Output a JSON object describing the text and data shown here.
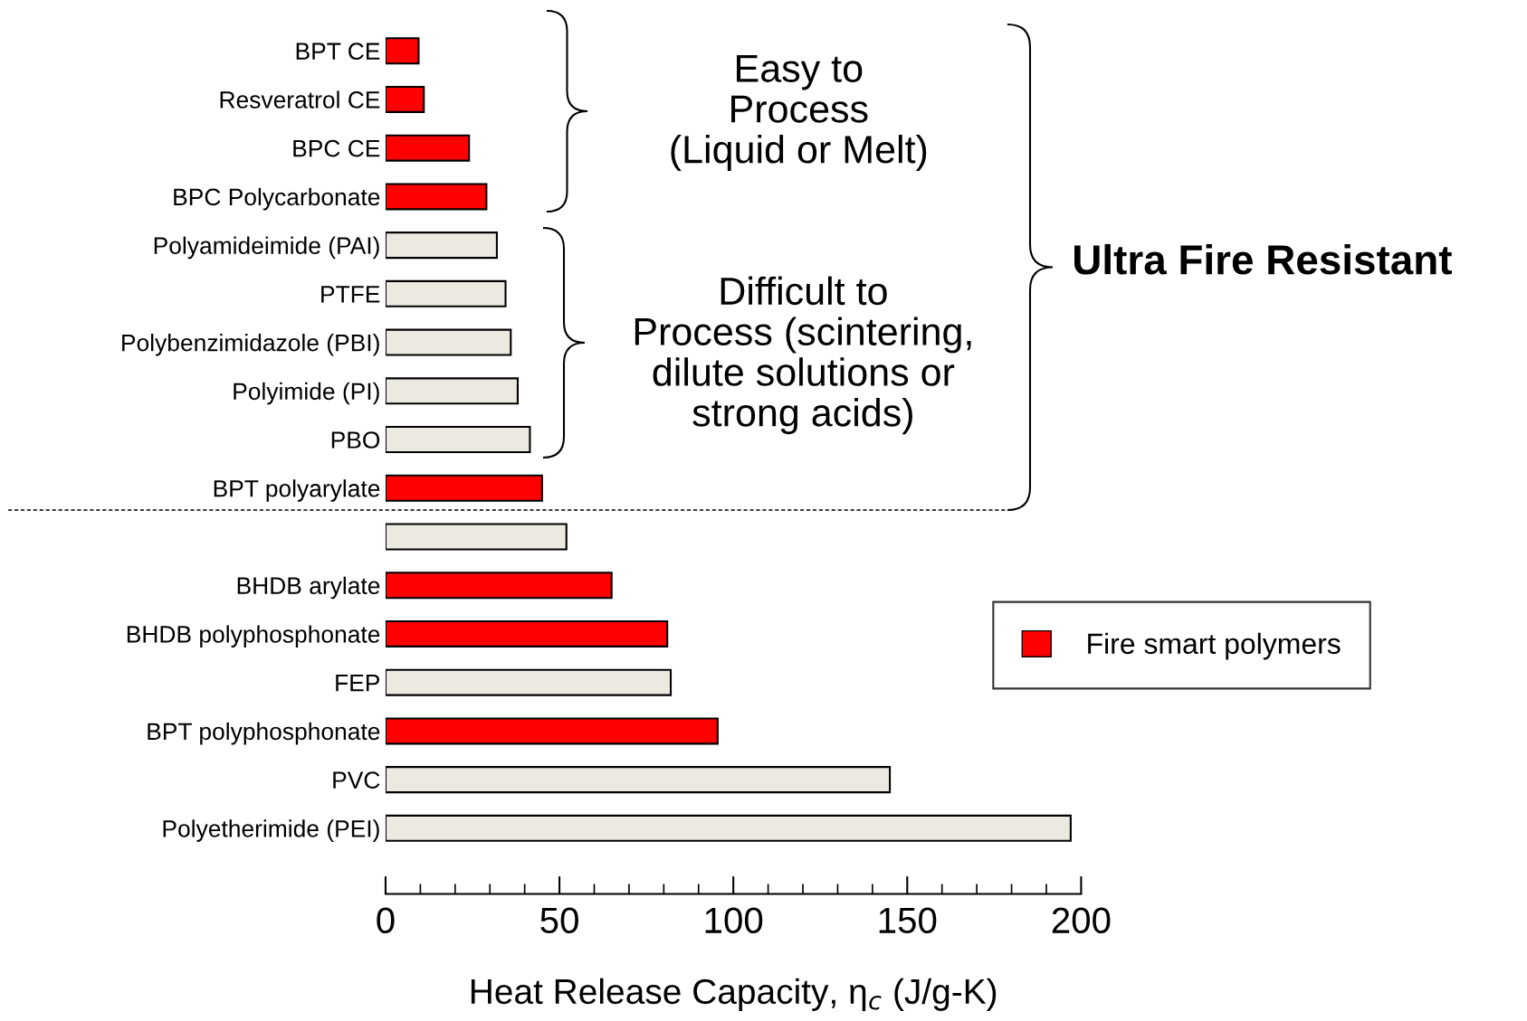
{
  "chart_data": {
    "type": "bar",
    "orientation": "horizontal",
    "categories": [
      "BPT CE",
      "Resveratrol CE",
      "BPC CE",
      "BPC Polycarbonate",
      "Polyamideimide (PAI)",
      "PTFE",
      "Polybenzimidazole (PBI)",
      "Polyimide (PI)",
      "PBO",
      "BPT polyarylate",
      null,
      "BHDB arylate",
      "BHDB polyphosphonate",
      "FEP",
      "BPT polyphosphonate",
      "PVC",
      "Polyetherimide (PEI)"
    ],
    "series": [
      {
        "name": "Fire smart polymers",
        "color": "#ff0000",
        "values": [
          9.5,
          11,
          24,
          29,
          null,
          null,
          null,
          null,
          null,
          45,
          null,
          65,
          81,
          null,
          95.5,
          null,
          null
        ]
      },
      {
        "color": "#ece9e0",
        "values": [
          null,
          null,
          null,
          null,
          32,
          34.5,
          36,
          38,
          41.5,
          null,
          52,
          null,
          null,
          82,
          null,
          145,
          197
        ]
      }
    ],
    "xlabel": "Heat Release Capacity, η$_{c}$ (J/g-K)",
    "xlim": [
      0,
      200
    ],
    "xticks": [
      0,
      50,
      100,
      150,
      200
    ],
    "annotations": [
      "Easy to\nProcess\n(Liquid or Melt)",
      "Difficult to\nProcess (scintering,\ndilute solutions or\nstrong acids)",
      "Ultra Fire Resistant"
    ],
    "legend": "right",
    "grid": false
  }
}
